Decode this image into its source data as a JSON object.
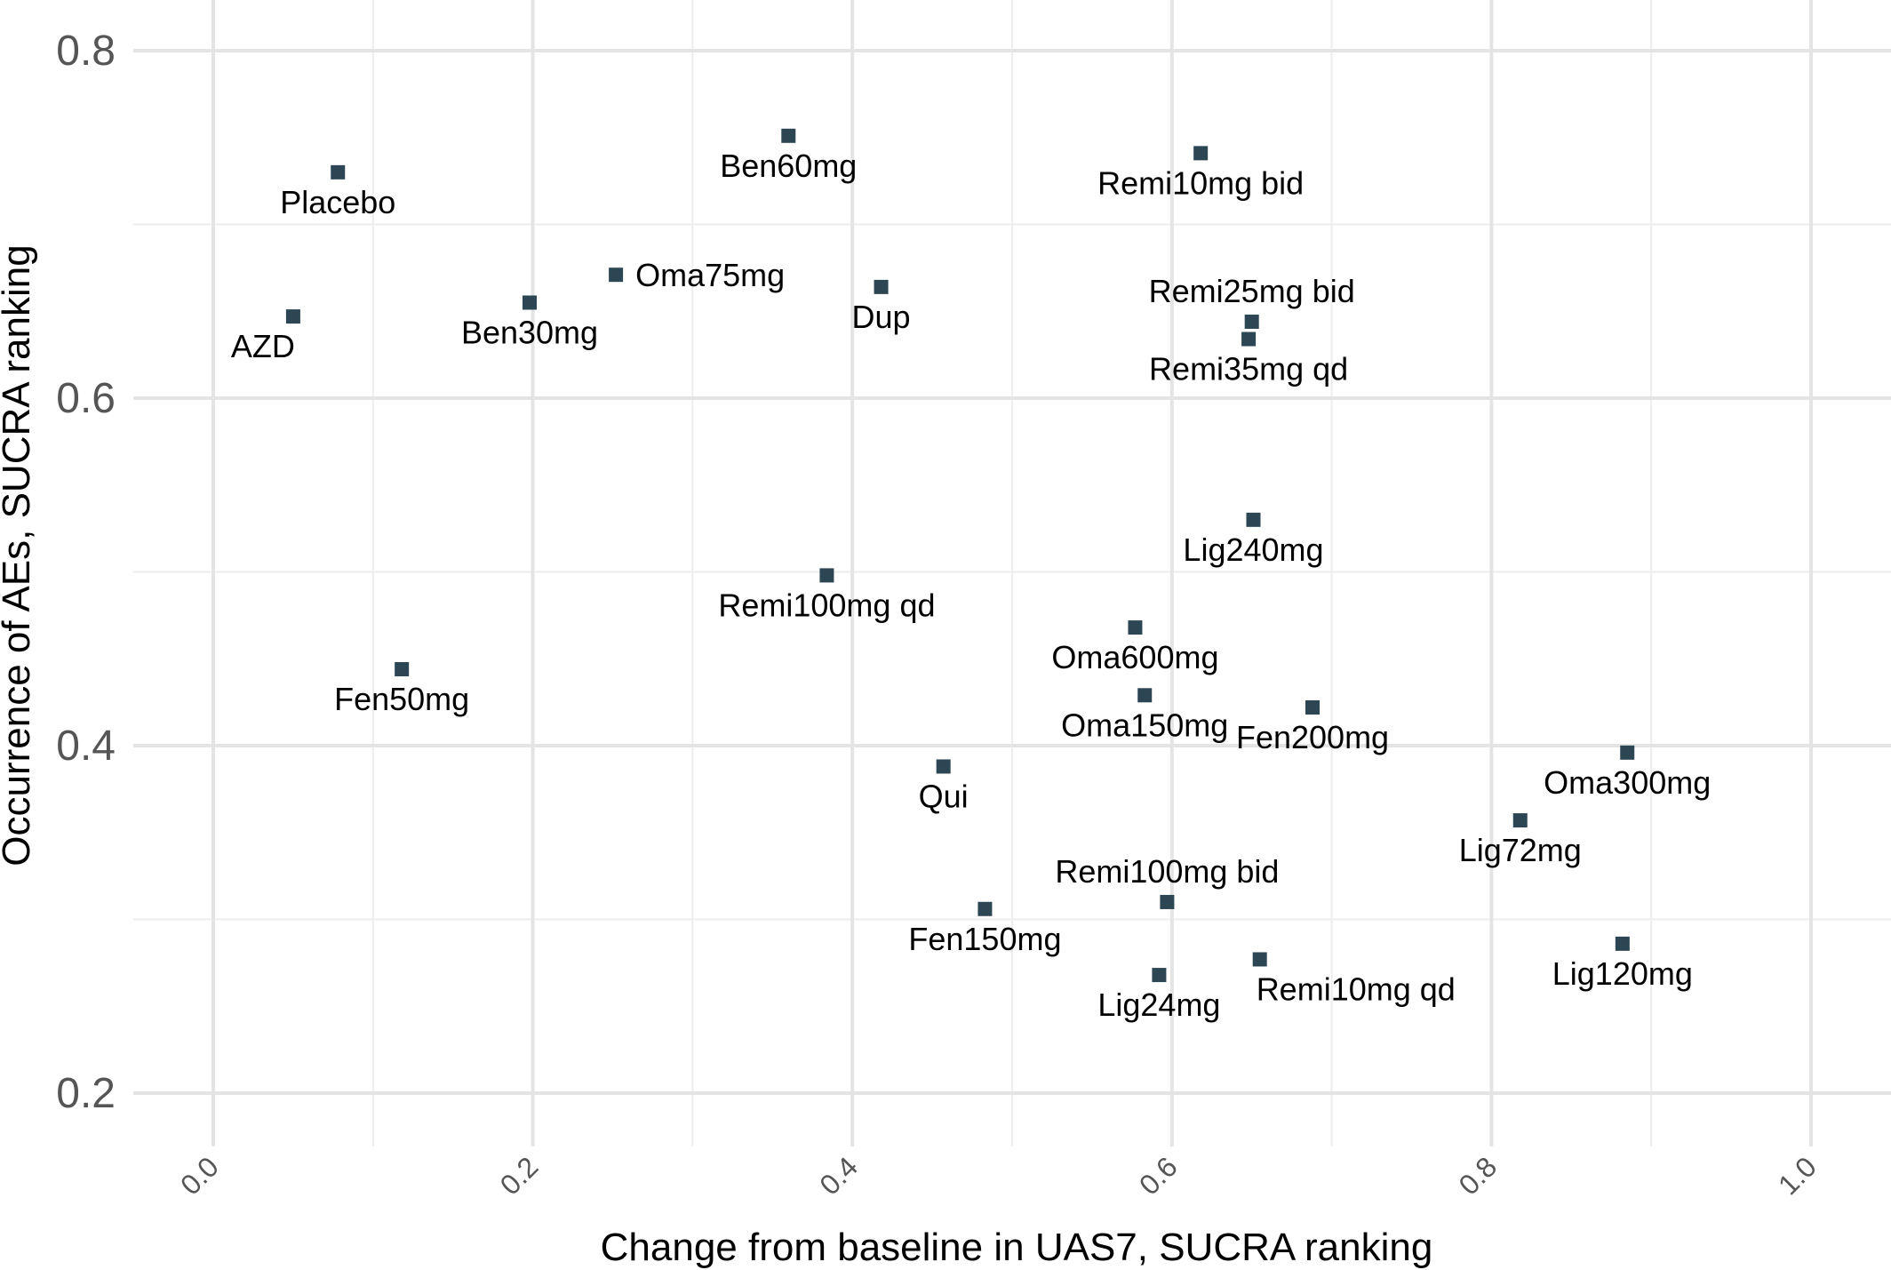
{
  "chart_data": {
    "type": "scatter",
    "title": "",
    "xlabel": "Change from baseline in UAS7, SUCRA ranking",
    "ylabel": "Occurrence of AEs, SUCRA ranking",
    "xlim": [
      -0.05,
      1.05
    ],
    "ylim": [
      0.17,
      0.82
    ],
    "x_ticks": [
      "0.0",
      "0.2",
      "0.4",
      "0.6",
      "0.8",
      "1.0"
    ],
    "y_ticks": [
      "0.2",
      "0.4",
      "0.6",
      "0.8"
    ],
    "grid": true,
    "legend": "none",
    "marker": "square",
    "marker_color": "#2d4654",
    "points": [
      {
        "label": "Placebo",
        "x": 0.078,
        "y": 0.73,
        "label_pos": "below"
      },
      {
        "label": "AZD",
        "x": 0.05,
        "y": 0.647,
        "label_pos": "below-left"
      },
      {
        "label": "Ben30mg",
        "x": 0.198,
        "y": 0.655,
        "label_pos": "below"
      },
      {
        "label": "Oma75mg",
        "x": 0.252,
        "y": 0.671,
        "label_pos": "right"
      },
      {
        "label": "Ben60mg",
        "x": 0.36,
        "y": 0.751,
        "label_pos": "below"
      },
      {
        "label": "Dup",
        "x": 0.418,
        "y": 0.664,
        "label_pos": "below"
      },
      {
        "label": "Remi10mg bid",
        "x": 0.618,
        "y": 0.741,
        "label_pos": "below"
      },
      {
        "label": "Remi25mg bid",
        "x": 0.65,
        "y": 0.644,
        "label_pos": "above"
      },
      {
        "label": "Remi35mg qd",
        "x": 0.648,
        "y": 0.634,
        "label_pos": "below"
      },
      {
        "label": "Lig240mg",
        "x": 0.651,
        "y": 0.53,
        "label_pos": "below"
      },
      {
        "label": "Remi100mg qd",
        "x": 0.384,
        "y": 0.498,
        "label_pos": "below"
      },
      {
        "label": "Oma600mg",
        "x": 0.577,
        "y": 0.468,
        "label_pos": "below"
      },
      {
        "label": "Fen50mg",
        "x": 0.118,
        "y": 0.444,
        "label_pos": "below"
      },
      {
        "label": "Oma150mg",
        "x": 0.583,
        "y": 0.429,
        "label_pos": "below"
      },
      {
        "label": "Fen200mg",
        "x": 0.688,
        "y": 0.422,
        "label_pos": "below"
      },
      {
        "label": "Oma300mg",
        "x": 0.885,
        "y": 0.396,
        "label_pos": "below"
      },
      {
        "label": "Qui",
        "x": 0.457,
        "y": 0.388,
        "label_pos": "below"
      },
      {
        "label": "Lig72mg",
        "x": 0.818,
        "y": 0.357,
        "label_pos": "below"
      },
      {
        "label": "Remi100mg bid",
        "x": 0.597,
        "y": 0.31,
        "label_pos": "above"
      },
      {
        "label": "Fen150mg",
        "x": 0.483,
        "y": 0.306,
        "label_pos": "below"
      },
      {
        "label": "Lig120mg",
        "x": 0.882,
        "y": 0.286,
        "label_pos": "below"
      },
      {
        "label": "Remi10mg qd",
        "x": 0.655,
        "y": 0.277,
        "label_pos": "below-right"
      },
      {
        "label": "Lig24mg",
        "x": 0.592,
        "y": 0.268,
        "label_pos": "below"
      }
    ]
  }
}
